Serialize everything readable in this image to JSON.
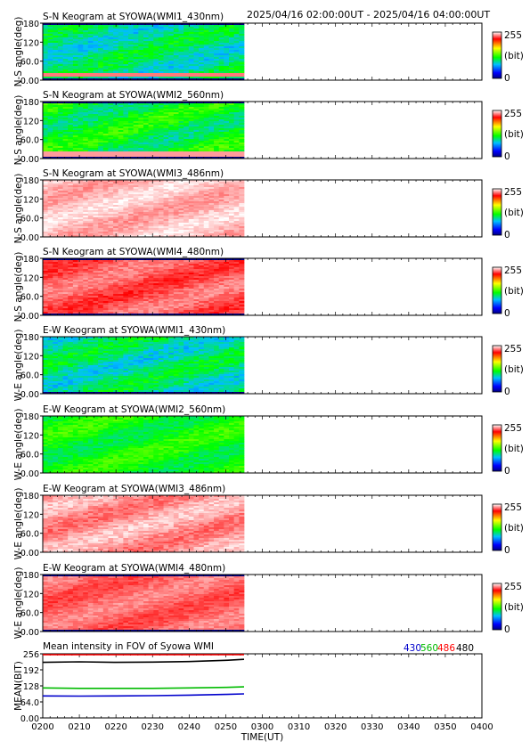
{
  "header": {
    "time_range": "2025/04/16 02:00:00UT - 2025/04/16 04:00:00UT"
  },
  "colorbar": {
    "max_label": "255",
    "unit_label": "(bit)",
    "min_label": "0"
  },
  "chart_data": [
    {
      "type": "heatmap",
      "title": "S-N Keogram at SYOWA(WMI1_430nm)",
      "ylabel": "N-S angle(deg)",
      "yticks": [
        "0.00",
        "60.0",
        "120",
        "180"
      ],
      "ylim": [
        0,
        180
      ],
      "data_end": "0255",
      "mean_value": 95,
      "variation": 25,
      "band": {
        "center": 15,
        "width": 6,
        "value": 235
      },
      "top_black": true,
      "bottom_black": true
    },
    {
      "type": "heatmap",
      "title": "S-N Keogram at SYOWA(WMI2_560nm)",
      "ylabel": "N-S angle(deg)",
      "yticks": [
        "0.00",
        "60.0",
        "120",
        "180"
      ],
      "ylim": [
        0,
        180
      ],
      "data_end": "0255",
      "mean_value": 110,
      "variation": 25,
      "band": {
        "center": 15,
        "width": 10,
        "value": 240
      },
      "top_black": true,
      "bottom_black": true
    },
    {
      "type": "heatmap",
      "title": "S-N Keogram at SYOWA(WMI3_486nm)",
      "ylabel": "N-S angle(deg)",
      "yticks": [
        "0.00",
        "60.0",
        "120",
        "180"
      ],
      "ylim": [
        0,
        180
      ],
      "data_end": "0255",
      "mean_value": 245,
      "variation": 10,
      "top_black": false,
      "bottom_black": false
    },
    {
      "type": "heatmap",
      "title": "S-N Keogram at SYOWA(WMI4_480nm)",
      "ylabel": "N-S angle(deg)",
      "yticks": [
        "0.00",
        "60.0",
        "120",
        "180"
      ],
      "ylim": [
        0,
        180
      ],
      "data_end": "0255",
      "mean_value": 230,
      "variation": 12,
      "top_black": true,
      "bottom_black": true
    },
    {
      "type": "heatmap",
      "title": "E-W Keogram at SYOWA(WMI1_430nm)",
      "ylabel": "W-E angle(deg)",
      "yticks": [
        "0.00",
        "60.0",
        "120",
        "180"
      ],
      "ylim": [
        0,
        180
      ],
      "data_end": "0255",
      "mean_value": 95,
      "variation": 25,
      "top_black": false,
      "bottom_black": true
    },
    {
      "type": "heatmap",
      "title": "E-W Keogram at SYOWA(WMI2_560nm)",
      "ylabel": "W-E angle(deg)",
      "yticks": [
        "0.00",
        "60.0",
        "120",
        "180"
      ],
      "ylim": [
        0,
        180
      ],
      "data_end": "0255",
      "mean_value": 115,
      "variation": 20,
      "top_black": false,
      "bottom_black": false
    },
    {
      "type": "heatmap",
      "title": "E-W Keogram at SYOWA(WMI3_486nm)",
      "ylabel": "W-E angle(deg)",
      "yticks": [
        "0.00",
        "60.0",
        "120",
        "180"
      ],
      "ylim": [
        0,
        180
      ],
      "data_end": "0255",
      "mean_value": 240,
      "variation": 12,
      "top_black": false,
      "bottom_black": false
    },
    {
      "type": "heatmap",
      "title": "E-W Keogram at SYOWA(WMI4_480nm)",
      "ylabel": "W-E angle(deg)",
      "yticks": [
        "0.00",
        "60.0",
        "120",
        "180"
      ],
      "ylim": [
        0,
        180
      ],
      "data_end": "0255",
      "mean_value": 232,
      "variation": 10,
      "top_black": true,
      "bottom_black": true
    },
    {
      "type": "line",
      "title": "Mean intensity in FOV of Syowa WMI",
      "ylabel": "MEAN(BIT)",
      "xlabel": "TIME(UT)",
      "ylim": [
        0,
        256
      ],
      "yticks": [
        "0.00",
        "64.0",
        "128",
        "192",
        "256"
      ],
      "x_categories": [
        "0200",
        "0210",
        "0220",
        "0230",
        "0240",
        "0250",
        "0300",
        "0310",
        "0320",
        "0330",
        "0340",
        "0350",
        "0400"
      ],
      "x_minutes": [
        0,
        10,
        20,
        30,
        40,
        50,
        60,
        70,
        80,
        90,
        100,
        110,
        120
      ],
      "series": [
        {
          "name": "430",
          "color": "#0000cc",
          "x": [
            0,
            10,
            20,
            30,
            40,
            50,
            55
          ],
          "y": [
            88,
            87,
            88,
            89,
            91,
            94,
            96
          ]
        },
        {
          "name": "560",
          "color": "#00bb00",
          "x": [
            0,
            10,
            20,
            30,
            40,
            50,
            55
          ],
          "y": [
            120,
            118,
            118,
            118,
            120,
            122,
            124
          ]
        },
        {
          "name": "486",
          "color": "#ff0000",
          "x": [
            0,
            10,
            20,
            30,
            40,
            50,
            55
          ],
          "y": [
            256,
            256,
            256,
            256,
            256,
            256,
            256
          ]
        },
        {
          "name": "480",
          "color": "#000000",
          "x": [
            0,
            10,
            20,
            30,
            40,
            50,
            55
          ],
          "y": [
            222,
            224,
            222,
            223,
            225,
            230,
            234
          ]
        }
      ]
    }
  ]
}
